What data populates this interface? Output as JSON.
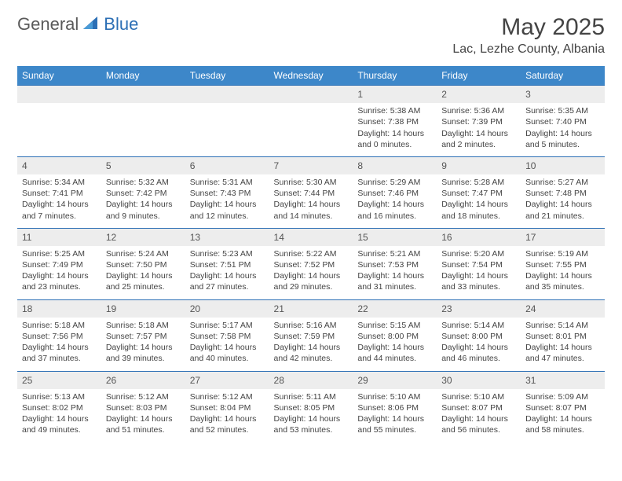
{
  "brand": {
    "general": "General",
    "blue": "Blue"
  },
  "title": "May 2025",
  "location": "Lac, Lezhe County, Albania",
  "colors": {
    "header_bg": "#3d87c9",
    "header_text": "#ffffff",
    "rule": "#2c6fb5",
    "daynum_bg": "#ededed",
    "text": "#444444",
    "logo_blue": "#2c6fb5",
    "logo_gray": "#5a5a5a"
  },
  "weekdays": [
    "Sunday",
    "Monday",
    "Tuesday",
    "Wednesday",
    "Thursday",
    "Friday",
    "Saturday"
  ],
  "weeks": [
    [
      null,
      null,
      null,
      null,
      {
        "n": 1,
        "sr": "5:38 AM",
        "ss": "7:38 PM",
        "dl": "14 hours and 0 minutes."
      },
      {
        "n": 2,
        "sr": "5:36 AM",
        "ss": "7:39 PM",
        "dl": "14 hours and 2 minutes."
      },
      {
        "n": 3,
        "sr": "5:35 AM",
        "ss": "7:40 PM",
        "dl": "14 hours and 5 minutes."
      }
    ],
    [
      {
        "n": 4,
        "sr": "5:34 AM",
        "ss": "7:41 PM",
        "dl": "14 hours and 7 minutes."
      },
      {
        "n": 5,
        "sr": "5:32 AM",
        "ss": "7:42 PM",
        "dl": "14 hours and 9 minutes."
      },
      {
        "n": 6,
        "sr": "5:31 AM",
        "ss": "7:43 PM",
        "dl": "14 hours and 12 minutes."
      },
      {
        "n": 7,
        "sr": "5:30 AM",
        "ss": "7:44 PM",
        "dl": "14 hours and 14 minutes."
      },
      {
        "n": 8,
        "sr": "5:29 AM",
        "ss": "7:46 PM",
        "dl": "14 hours and 16 minutes."
      },
      {
        "n": 9,
        "sr": "5:28 AM",
        "ss": "7:47 PM",
        "dl": "14 hours and 18 minutes."
      },
      {
        "n": 10,
        "sr": "5:27 AM",
        "ss": "7:48 PM",
        "dl": "14 hours and 21 minutes."
      }
    ],
    [
      {
        "n": 11,
        "sr": "5:25 AM",
        "ss": "7:49 PM",
        "dl": "14 hours and 23 minutes."
      },
      {
        "n": 12,
        "sr": "5:24 AM",
        "ss": "7:50 PM",
        "dl": "14 hours and 25 minutes."
      },
      {
        "n": 13,
        "sr": "5:23 AM",
        "ss": "7:51 PM",
        "dl": "14 hours and 27 minutes."
      },
      {
        "n": 14,
        "sr": "5:22 AM",
        "ss": "7:52 PM",
        "dl": "14 hours and 29 minutes."
      },
      {
        "n": 15,
        "sr": "5:21 AM",
        "ss": "7:53 PM",
        "dl": "14 hours and 31 minutes."
      },
      {
        "n": 16,
        "sr": "5:20 AM",
        "ss": "7:54 PM",
        "dl": "14 hours and 33 minutes."
      },
      {
        "n": 17,
        "sr": "5:19 AM",
        "ss": "7:55 PM",
        "dl": "14 hours and 35 minutes."
      }
    ],
    [
      {
        "n": 18,
        "sr": "5:18 AM",
        "ss": "7:56 PM",
        "dl": "14 hours and 37 minutes."
      },
      {
        "n": 19,
        "sr": "5:18 AM",
        "ss": "7:57 PM",
        "dl": "14 hours and 39 minutes."
      },
      {
        "n": 20,
        "sr": "5:17 AM",
        "ss": "7:58 PM",
        "dl": "14 hours and 40 minutes."
      },
      {
        "n": 21,
        "sr": "5:16 AM",
        "ss": "7:59 PM",
        "dl": "14 hours and 42 minutes."
      },
      {
        "n": 22,
        "sr": "5:15 AM",
        "ss": "8:00 PM",
        "dl": "14 hours and 44 minutes."
      },
      {
        "n": 23,
        "sr": "5:14 AM",
        "ss": "8:00 PM",
        "dl": "14 hours and 46 minutes."
      },
      {
        "n": 24,
        "sr": "5:14 AM",
        "ss": "8:01 PM",
        "dl": "14 hours and 47 minutes."
      }
    ],
    [
      {
        "n": 25,
        "sr": "5:13 AM",
        "ss": "8:02 PM",
        "dl": "14 hours and 49 minutes."
      },
      {
        "n": 26,
        "sr": "5:12 AM",
        "ss": "8:03 PM",
        "dl": "14 hours and 51 minutes."
      },
      {
        "n": 27,
        "sr": "5:12 AM",
        "ss": "8:04 PM",
        "dl": "14 hours and 52 minutes."
      },
      {
        "n": 28,
        "sr": "5:11 AM",
        "ss": "8:05 PM",
        "dl": "14 hours and 53 minutes."
      },
      {
        "n": 29,
        "sr": "5:10 AM",
        "ss": "8:06 PM",
        "dl": "14 hours and 55 minutes."
      },
      {
        "n": 30,
        "sr": "5:10 AM",
        "ss": "8:07 PM",
        "dl": "14 hours and 56 minutes."
      },
      {
        "n": 31,
        "sr": "5:09 AM",
        "ss": "8:07 PM",
        "dl": "14 hours and 58 minutes."
      }
    ]
  ],
  "labels": {
    "sunrise": "Sunrise:",
    "sunset": "Sunset:",
    "daylight": "Daylight:"
  }
}
